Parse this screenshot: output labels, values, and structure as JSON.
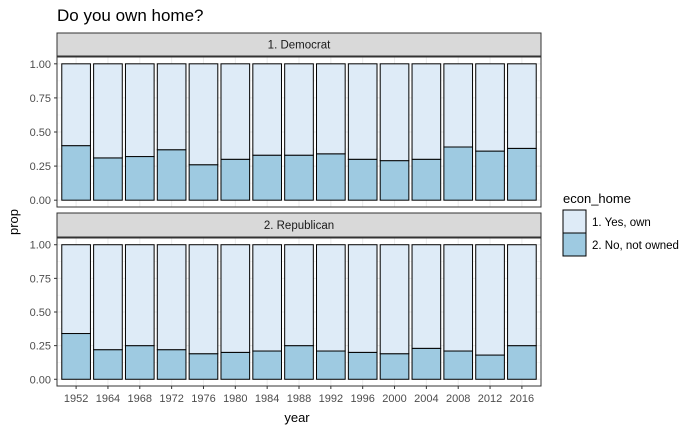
{
  "chart_data": {
    "type": "bar",
    "title": "Do you own home?",
    "xlabel": "year",
    "ylabel": "prop",
    "ylim": [
      0,
      1
    ],
    "y_ticks": [
      "0.00",
      "0.25",
      "0.50",
      "0.75",
      "1.00"
    ],
    "y_tick_values": [
      0,
      0.25,
      0.5,
      0.75,
      1
    ],
    "categories": [
      "1952",
      "1964",
      "1968",
      "1972",
      "1976",
      "1980",
      "1984",
      "1988",
      "1992",
      "1996",
      "2000",
      "2004",
      "2008",
      "2012",
      "2016"
    ],
    "legend": {
      "title": "econ_home",
      "position": "right",
      "entries": [
        "1. Yes, own",
        "2. No, not owned"
      ]
    },
    "colors": {
      "1. Yes, own": "#deebf7",
      "2. No, not owned": "#9ecae1"
    },
    "grid": true,
    "facets": [
      {
        "label": "1. Democrat",
        "series": [
          {
            "name": "2. No, not owned",
            "values": [
              0.4,
              0.31,
              0.32,
              0.37,
              0.26,
              0.3,
              0.33,
              0.33,
              0.34,
              0.3,
              0.29,
              0.3,
              0.39,
              0.36,
              0.38
            ]
          },
          {
            "name": "1. Yes, own",
            "values": [
              0.6,
              0.69,
              0.68,
              0.63,
              0.74,
              0.7,
              0.67,
              0.67,
              0.66,
              0.7,
              0.71,
              0.7,
              0.61,
              0.64,
              0.62
            ]
          }
        ]
      },
      {
        "label": "2. Republican",
        "series": [
          {
            "name": "2. No, not owned",
            "values": [
              0.34,
              0.22,
              0.25,
              0.22,
              0.19,
              0.2,
              0.21,
              0.25,
              0.21,
              0.2,
              0.19,
              0.23,
              0.21,
              0.18,
              0.25
            ]
          },
          {
            "name": "1. Yes, own",
            "values": [
              0.66,
              0.78,
              0.75,
              0.78,
              0.81,
              0.8,
              0.79,
              0.75,
              0.79,
              0.8,
              0.81,
              0.77,
              0.79,
              0.82,
              0.75
            ]
          }
        ]
      }
    ]
  }
}
